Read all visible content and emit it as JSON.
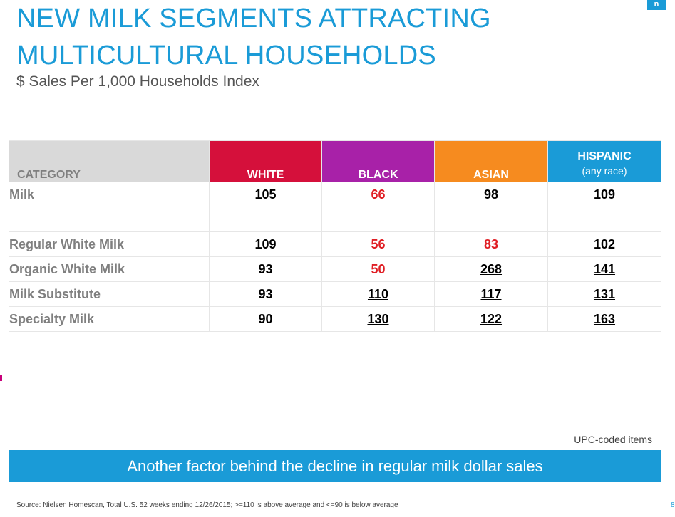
{
  "title_line1": "NEW MILK SEGMENTS ATTRACTING",
  "title_line2": "MULTICULTURAL HOUSEHOLDS",
  "subtitle": "$ Sales Per 1,000 Households Index",
  "logo_text": "n",
  "table": {
    "headers": {
      "category": "CATEGORY",
      "white": "WHITE",
      "black": "BLACK",
      "asian": "ASIAN",
      "hispanic": "HISPANIC",
      "hispanic_sub": "(any race)"
    },
    "header_colors": {
      "white": "#d5103b",
      "black": "#a821a8",
      "asian": "#f68b1f",
      "hispanic": "#1a9bd7",
      "category": "#d9d9d9"
    },
    "rows": [
      {
        "label": "Milk",
        "white": "105",
        "black": "66",
        "asian": "98",
        "hispanic": "109"
      },
      {
        "label": "",
        "white": "",
        "black": "",
        "asian": "",
        "hispanic": ""
      },
      {
        "label": "Regular White Milk",
        "white": "109",
        "black": "56",
        "asian": "83",
        "hispanic": "102"
      },
      {
        "label": "Organic White Milk",
        "white": "93",
        "black": "50",
        "asian": "268",
        "hispanic": "141"
      },
      {
        "label": "Milk Substitute",
        "white": "93",
        "black": "110",
        "asian": "117",
        "hispanic": "131"
      },
      {
        "label": "Specialty Milk",
        "white": "90",
        "black": "130",
        "asian": "122",
        "hispanic": "163"
      }
    ]
  },
  "note": "UPC-coded items",
  "banner": "Another factor behind the decline in regular milk dollar sales",
  "source": "Source: Nielsen Homescan, Total U.S. 52 weeks ending 12/26/2015; >=110 is above average and <=90 is below average",
  "page_number": "8",
  "colors": {
    "accent": "#1a9bd7",
    "low": "#e01e24"
  }
}
